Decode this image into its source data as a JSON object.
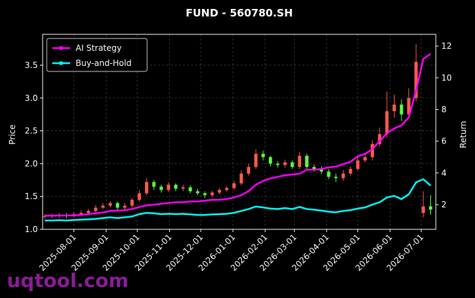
{
  "chart_data": {
    "type": "candlestick_returns",
    "title": "FUND - 560780.SH",
    "y_label": "Price",
    "y2_label": "Return",
    "watermark": "uqtool.com",
    "x": [
      "2025-07-04",
      "2025-07-11",
      "2025-07-18",
      "2025-07-25",
      "2025-08-01",
      "2025-08-08",
      "2025-08-15",
      "2025-08-22",
      "2025-08-29",
      "2025-09-05",
      "2025-09-12",
      "2025-09-19",
      "2025-09-26",
      "2025-10-03",
      "2025-10-10",
      "2025-10-17",
      "2025-10-24",
      "2025-10-31",
      "2025-11-07",
      "2025-11-14",
      "2025-11-21",
      "2025-11-28",
      "2025-12-05",
      "2025-12-12",
      "2025-12-19",
      "2025-12-26",
      "2026-01-02",
      "2026-01-09",
      "2026-01-16",
      "2026-01-23",
      "2026-01-30",
      "2026-02-06",
      "2026-02-13",
      "2026-02-20",
      "2026-02-27",
      "2026-03-06",
      "2026-03-13",
      "2026-03-20",
      "2026-03-27",
      "2026-04-03",
      "2026-04-10",
      "2026-04-17",
      "2026-04-24",
      "2026-05-01",
      "2026-05-08",
      "2026-05-15",
      "2026-05-22",
      "2026-05-29",
      "2026-06-05",
      "2026-06-12",
      "2026-06-19",
      "2026-06-26",
      "2026-07-03",
      "2026-07-10"
    ],
    "open": [
      1.19,
      1.2,
      1.21,
      1.22,
      1.2,
      1.23,
      1.25,
      1.28,
      1.33,
      1.36,
      1.4,
      1.33,
      1.36,
      1.45,
      1.55,
      1.72,
      1.65,
      1.6,
      1.68,
      1.62,
      1.64,
      1.58,
      1.55,
      1.52,
      1.56,
      1.6,
      1.63,
      1.7,
      1.85,
      1.95,
      2.15,
      2.1,
      2.0,
      1.98,
      2.02,
      1.95,
      2.12,
      1.95,
      1.92,
      1.88,
      1.8,
      1.78,
      1.85,
      1.92,
      2.05,
      2.1,
      2.3,
      2.45,
      2.8,
      2.9,
      2.75,
      3.0,
      1.25,
      1.35
    ],
    "high": [
      1.23,
      1.24,
      1.25,
      1.25,
      1.26,
      1.29,
      1.31,
      1.37,
      1.4,
      1.43,
      1.42,
      1.4,
      1.48,
      1.6,
      1.78,
      1.75,
      1.68,
      1.72,
      1.7,
      1.68,
      1.67,
      1.62,
      1.58,
      1.59,
      1.63,
      1.66,
      1.74,
      1.9,
      2.0,
      2.22,
      2.2,
      2.12,
      2.04,
      2.06,
      2.05,
      2.18,
      2.15,
      1.99,
      1.96,
      1.92,
      1.85,
      1.9,
      1.96,
      2.1,
      2.16,
      2.36,
      2.55,
      3.1,
      3.05,
      2.98,
      3.15,
      3.82,
      1.58,
      1.52
    ],
    "low": [
      1.16,
      1.17,
      1.18,
      1.17,
      1.18,
      1.21,
      1.23,
      1.26,
      1.31,
      1.33,
      1.3,
      1.29,
      1.33,
      1.42,
      1.52,
      1.6,
      1.56,
      1.57,
      1.58,
      1.58,
      1.55,
      1.52,
      1.48,
      1.49,
      1.53,
      1.57,
      1.6,
      1.67,
      1.82,
      1.92,
      2.05,
      1.96,
      1.94,
      1.94,
      1.92,
      1.92,
      1.92,
      1.88,
      1.84,
      1.76,
      1.72,
      1.74,
      1.82,
      1.9,
      2.02,
      2.05,
      2.26,
      2.4,
      2.7,
      2.65,
      2.7,
      2.95,
      1.18,
      1.22
    ],
    "close": [
      1.2,
      1.21,
      1.22,
      1.2,
      1.23,
      1.25,
      1.28,
      1.33,
      1.36,
      1.4,
      1.33,
      1.36,
      1.45,
      1.55,
      1.72,
      1.65,
      1.6,
      1.68,
      1.62,
      1.64,
      1.58,
      1.55,
      1.52,
      1.56,
      1.6,
      1.63,
      1.7,
      1.85,
      1.95,
      2.15,
      2.1,
      2.0,
      1.98,
      2.02,
      1.95,
      2.12,
      1.95,
      1.92,
      1.88,
      1.8,
      1.78,
      1.85,
      1.92,
      2.05,
      2.1,
      2.3,
      2.45,
      2.8,
      2.9,
      2.75,
      3.0,
      3.55,
      1.35,
      1.3
    ],
    "up_color": "#ff5a4f",
    "down_color": "#5cff3f",
    "series": [
      {
        "name": "AI Strategy",
        "color": "#ff00ff",
        "axis": "y2",
        "values": [
          1.3,
          1.3,
          1.31,
          1.31,
          1.32,
          1.35,
          1.4,
          1.45,
          1.5,
          1.6,
          1.62,
          1.65,
          1.72,
          1.85,
          1.95,
          2.0,
          2.05,
          2.1,
          2.15,
          2.15,
          2.2,
          2.2,
          2.25,
          2.3,
          2.3,
          2.35,
          2.45,
          2.6,
          2.85,
          3.25,
          3.5,
          3.65,
          3.75,
          3.85,
          3.9,
          3.95,
          4.2,
          4.2,
          4.25,
          4.35,
          4.4,
          4.55,
          4.7,
          5.05,
          5.2,
          5.5,
          6.0,
          6.5,
          6.8,
          7.0,
          7.5,
          9.2,
          11.2,
          11.5
        ]
      },
      {
        "name": "Buy-and-Hold",
        "color": "#00ffff",
        "axis": "y2",
        "values": [
          1.0,
          1.0,
          1.02,
          1.0,
          1.03,
          1.05,
          1.07,
          1.1,
          1.15,
          1.2,
          1.15,
          1.2,
          1.25,
          1.4,
          1.48,
          1.45,
          1.4,
          1.42,
          1.4,
          1.42,
          1.38,
          1.35,
          1.35,
          1.38,
          1.4,
          1.42,
          1.48,
          1.6,
          1.72,
          1.88,
          1.82,
          1.75,
          1.72,
          1.78,
          1.72,
          1.85,
          1.72,
          1.68,
          1.62,
          1.55,
          1.52,
          1.6,
          1.65,
          1.75,
          1.82,
          2.0,
          2.15,
          2.45,
          2.55,
          2.35,
          2.65,
          3.4,
          3.6,
          3.2
        ]
      }
    ],
    "xlim": [
      "2025-07-02",
      "2026-07-15"
    ],
    "xticks": [
      "2025-08-01",
      "2025-09-01",
      "2025-10-01",
      "2025-11-01",
      "2025-12-01",
      "2026-01-01",
      "2026-02-01",
      "2026-03-01",
      "2026-04-01",
      "2026-05-01",
      "2026-06-01",
      "2026-07-01"
    ],
    "ylim": [
      1.0,
      3.97
    ],
    "yticks": [
      {
        "value": 1.0,
        "label": "1.0"
      },
      1.5,
      {
        "value": 2.0,
        "label": "2.0"
      },
      2.5,
      {
        "value": 3.0,
        "label": "3.0"
      },
      3.5
    ],
    "y2lim": [
      0.44,
      12.74
    ],
    "y2ticks": [
      2,
      4,
      6,
      8,
      10,
      12
    ],
    "grid": true,
    "legend": "upper left"
  }
}
